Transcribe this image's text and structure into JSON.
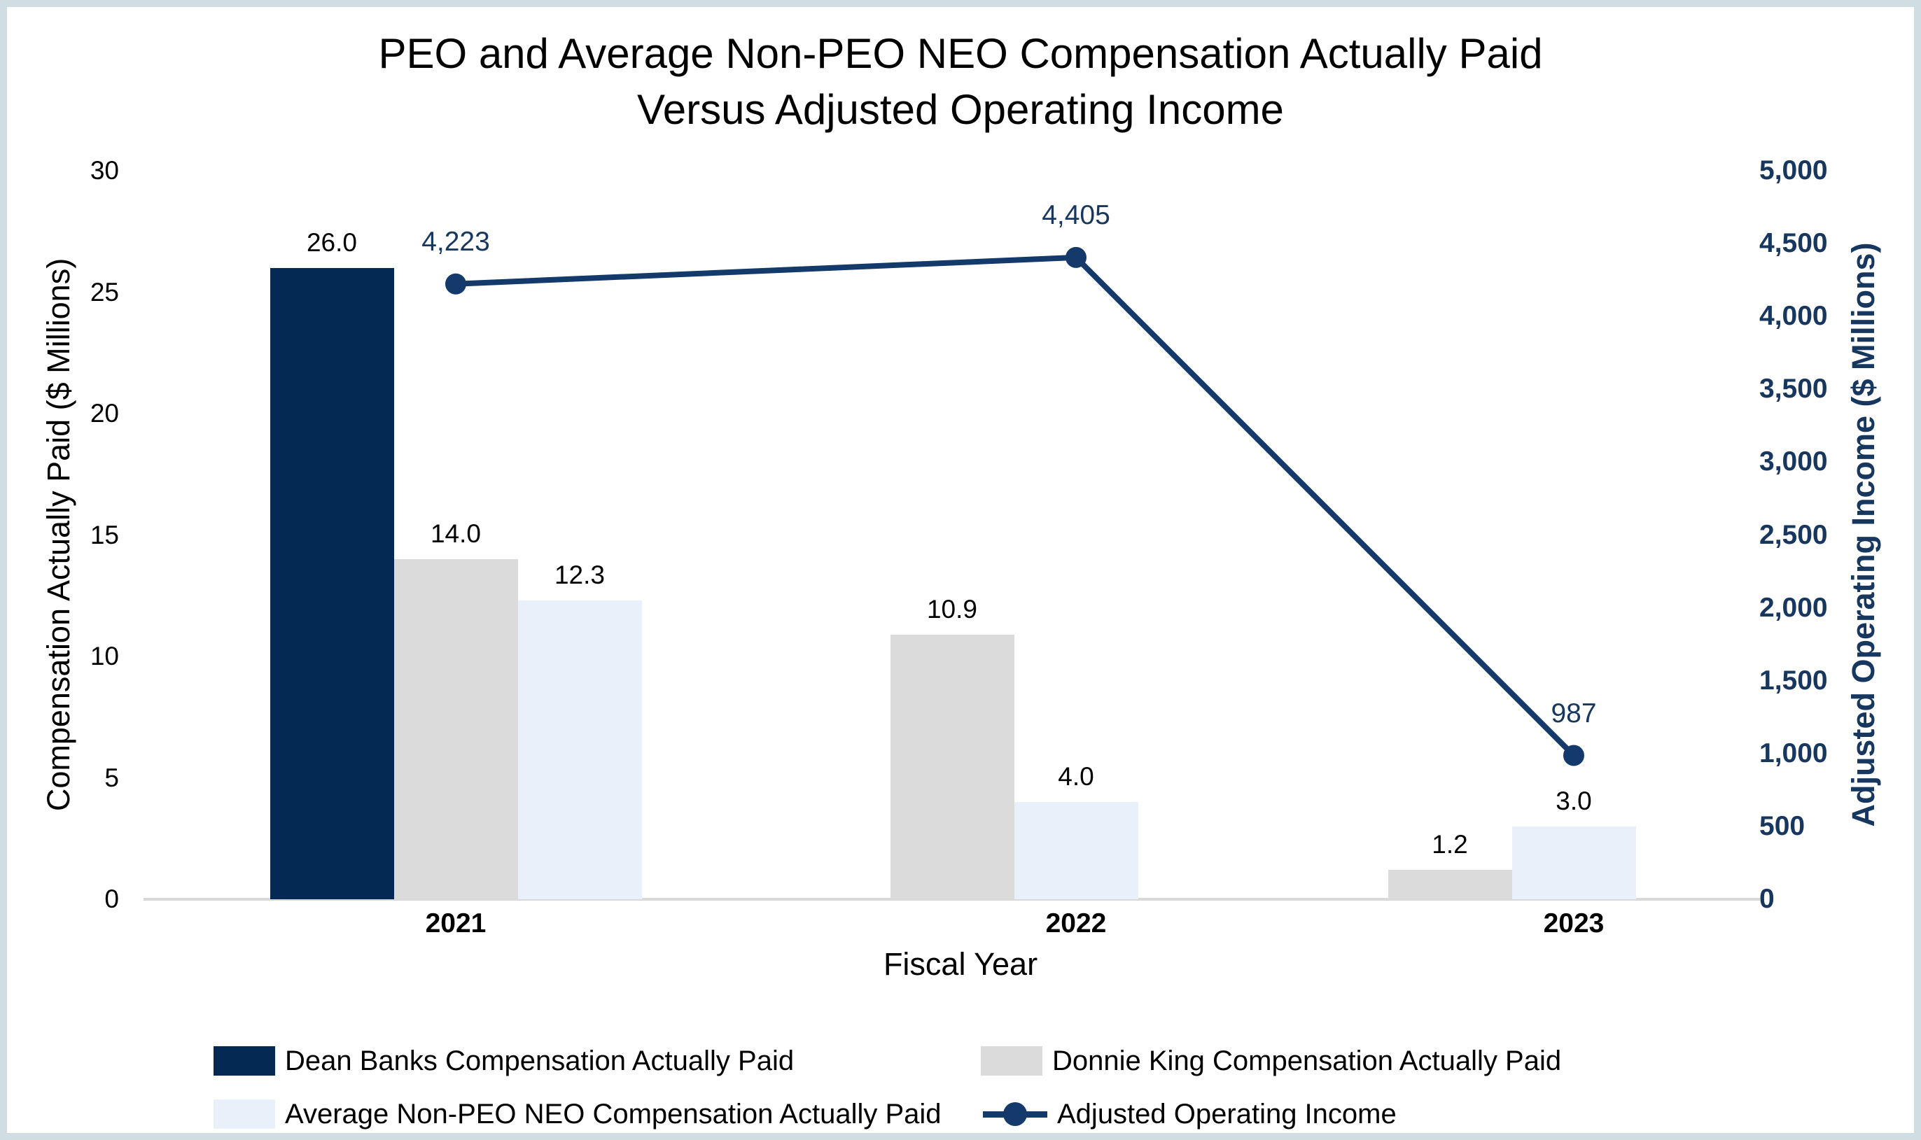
{
  "title": {
    "line1": "PEO and Average Non-PEO NEO Compensation Actually Paid",
    "line2": "Versus Adjusted Operating Income"
  },
  "axes": {
    "left": {
      "title": "Compensation Actually Paid ($ Millions)",
      "tick_labels": [
        "0",
        "5",
        "10",
        "15",
        "20",
        "25",
        "30"
      ],
      "tick_values": [
        0,
        5,
        10,
        15,
        20,
        25,
        30
      ],
      "range": [
        0,
        30
      ]
    },
    "right": {
      "title": "Adjusted Operating Income ($ Millions)",
      "tick_labels": [
        "0",
        "500",
        "1,000",
        "1,500",
        "2,000",
        "2,500",
        "3,000",
        "3,500",
        "4,000",
        "4,500",
        "5,000"
      ],
      "tick_values": [
        0,
        500,
        1000,
        1500,
        2000,
        2500,
        3000,
        3500,
        4000,
        4500,
        5000
      ],
      "range": [
        0,
        5000
      ]
    },
    "x": {
      "title": "Fiscal Year",
      "categories": [
        "2021",
        "2022",
        "2023"
      ]
    }
  },
  "chart_data": {
    "type": "combo_bar_line",
    "categories": [
      "2021",
      "2022",
      "2023"
    ],
    "series": [
      {
        "name": "Dean Banks Compensation Actually Paid",
        "type": "bar",
        "axis": "left",
        "color": "#042A54",
        "values": [
          26.0,
          null,
          null
        ],
        "labels": [
          "26.0",
          null,
          null
        ]
      },
      {
        "name": "Donnie King Compensation Actually Paid",
        "type": "bar",
        "axis": "left",
        "color": "#DBDBDB",
        "values": [
          14.0,
          10.9,
          1.2
        ],
        "labels": [
          "14.0",
          "10.9",
          "1.2"
        ]
      },
      {
        "name": "Average Non-PEO NEO Compensation Actually Paid",
        "type": "bar",
        "axis": "left",
        "color": "#EAF0F9",
        "values": [
          12.3,
          4.0,
          3.0
        ],
        "labels": [
          "12.3",
          "4.0",
          "3.0"
        ]
      },
      {
        "name": "Adjusted Operating Income",
        "type": "line",
        "axis": "right",
        "color": "#14396B",
        "values": [
          4223,
          4405,
          987
        ],
        "labels": [
          "4,223",
          "4,405",
          "987"
        ]
      }
    ],
    "left_ylim": [
      0,
      30
    ],
    "right_ylim": [
      0,
      5000
    ],
    "grid": false,
    "legend_position": "bottom",
    "xlabel": "Fiscal Year",
    "ylabel_left": "Compensation Actually Paid ($ Millions)",
    "ylabel_right": "Adjusted Operating Income ($ Millions)"
  },
  "colors": {
    "frame_border": "#D0DEE3",
    "background": "#FFFFFF",
    "axis_line": "#D9D9D9",
    "text": "#000000",
    "navy_text": "#17375E",
    "dean_banks_bar": "#042A54",
    "donnie_king_bar": "#DBDBDB",
    "avg_neo_bar": "#EAF0F9",
    "line": "#14396B"
  }
}
